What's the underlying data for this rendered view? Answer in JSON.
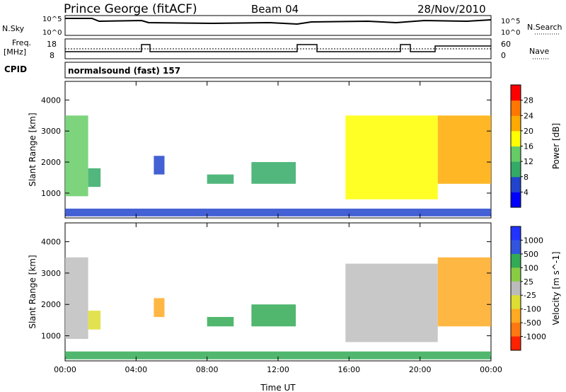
{
  "header": {
    "title": "Prince George (fitACF)",
    "beam": "Beam 04",
    "date": "28/Nov/2010",
    "cpid_program": "normalsound (fast)",
    "cpid_number": "157"
  },
  "labels": {
    "nsky": "N.Sky",
    "nsky_hi": "10^5",
    "nsky_lo": "10^0",
    "nsearch": "N.Search",
    "nsearch_hi": "10^5",
    "nsearch_lo": "10^0",
    "freq_line1": "Freq.",
    "freq_line2": "[MHz]",
    "freq_hi": "18",
    "freq_lo": "8",
    "nave": "Nave",
    "nave_hi": "60",
    "nave_lo": "0",
    "cpid": "CPID"
  },
  "colors": {
    "power_scale": [
      "#0000ff",
      "#2244cc",
      "#33aa66",
      "#66cc66",
      "#ffff00",
      "#ffaa00",
      "#ff7700",
      "#ff0000"
    ],
    "velocity_scale": [
      "#2233ff",
      "#3355dd",
      "#33aa55",
      "#88cc44",
      "#bbbbbb",
      "#dddd33",
      "#ffaa22",
      "#ff7711",
      "#ff2200"
    ],
    "ground_scatter": "#bebebe"
  },
  "chart_data": [
    {
      "type": "heatmap",
      "name": "power",
      "ylabel": "Slant Range [km]",
      "xlabel": "",
      "x_ticks": [
        "00:00",
        "04:00",
        "08:00",
        "12:00",
        "16:00",
        "20:00",
        "00:00"
      ],
      "y_ticks": [
        "1000",
        "2000",
        "3000",
        "4000"
      ],
      "ylim": [
        200,
        4600
      ],
      "xlim_hours": [
        0,
        24
      ],
      "colorbar": {
        "label": "Power [dB]",
        "ticks": [
          "4",
          "8",
          "12",
          "16",
          "20",
          "24",
          "28"
        ]
      },
      "patches": [
        {
          "t0": 0.0,
          "t1": 1.3,
          "r0": 900,
          "r1": 3500,
          "level": 16
        },
        {
          "t0": 1.3,
          "t1": 2.0,
          "r0": 1200,
          "r1": 1800,
          "level": 12
        },
        {
          "t0": 5.0,
          "t1": 5.6,
          "r0": 1600,
          "r1": 2200,
          "level": 8
        },
        {
          "t0": 8.0,
          "t1": 9.5,
          "r0": 1300,
          "r1": 1600,
          "level": 12
        },
        {
          "t0": 10.5,
          "t1": 13.0,
          "r0": 1300,
          "r1": 2000,
          "level": 12
        },
        {
          "t0": 15.8,
          "t1": 21.0,
          "r0": 800,
          "r1": 3500,
          "level": 20
        },
        {
          "t0": 21.0,
          "t1": 24.0,
          "r0": 1300,
          "r1": 3500,
          "level": 24
        },
        {
          "t0": 0.0,
          "t1": 24.0,
          "r0": 250,
          "r1": 500,
          "level": 8
        }
      ]
    },
    {
      "type": "heatmap",
      "name": "velocity",
      "ylabel": "Slant Range [km]",
      "xlabel": "Time UT",
      "x_ticks": [
        "00:00",
        "04:00",
        "08:00",
        "12:00",
        "16:00",
        "20:00",
        "00:00"
      ],
      "y_ticks": [
        "1000",
        "2000",
        "3000",
        "4000"
      ],
      "ylim": [
        200,
        4600
      ],
      "xlim_hours": [
        0,
        24
      ],
      "colorbar": {
        "label": "Velocity [m s^-1]",
        "ticks": [
          "1000",
          "500",
          "100",
          "25",
          "-25",
          "-100",
          "-500",
          "-1000"
        ]
      },
      "patches": [
        {
          "t0": 0.0,
          "t1": 1.3,
          "r0": 900,
          "r1": 3500,
          "level": "ground"
        },
        {
          "t0": 1.3,
          "t1": 2.0,
          "r0": 1200,
          "r1": 1800,
          "level": -100
        },
        {
          "t0": 5.0,
          "t1": 5.6,
          "r0": 1600,
          "r1": 2200,
          "level": -500
        },
        {
          "t0": 8.0,
          "t1": 9.5,
          "r0": 1300,
          "r1": 1600,
          "level": 100
        },
        {
          "t0": 10.5,
          "t1": 13.0,
          "r0": 1300,
          "r1": 2000,
          "level": 100
        },
        {
          "t0": 15.8,
          "t1": 21.0,
          "r0": 800,
          "r1": 3300,
          "level": "ground"
        },
        {
          "t0": 21.0,
          "t1": 24.0,
          "r0": 1300,
          "r1": 3500,
          "level": -500
        },
        {
          "t0": 0.0,
          "t1": 24.0,
          "r0": 250,
          "r1": 500,
          "level": 100
        }
      ]
    }
  ]
}
